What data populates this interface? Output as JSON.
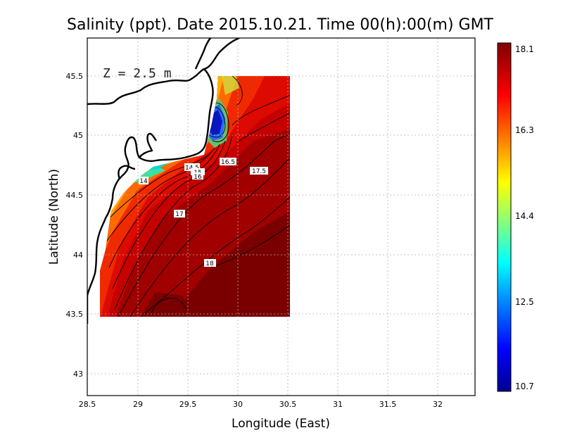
{
  "title": "Salinity (ppt). Date 2015.10.21. Time 00(h):00(m) GMT",
  "depth_label": "Z = 2.5 m",
  "xlabel": "Longitude (East)",
  "ylabel": "Latitude (North)",
  "x_ticks": [
    "28.5",
    "29",
    "29.5",
    "30",
    "30.5",
    "31",
    "31.5",
    "32"
  ],
  "y_ticks": [
    "43",
    "43.5",
    "44",
    "44.5",
    "45",
    "45.5"
  ],
  "colorbar": {
    "min": 10.7,
    "max": 18.1,
    "tick_labels": [
      "18.1",
      "16.3",
      "14.4",
      "12.5",
      "10.7"
    ],
    "colors": [
      "#00008f",
      "#0000ff",
      "#0080ff",
      "#00ffff",
      "#80ff80",
      "#ffff00",
      "#ff8000",
      "#ff0000",
      "#800000"
    ]
  },
  "contour_labels": [
    "14",
    "14.5",
    "15",
    "16",
    "16.5",
    "17",
    "17.5",
    "17",
    "18"
  ],
  "chart_data": {
    "type": "heatmap",
    "variable": "Salinity (ppt)",
    "xlim": [
      28.5,
      32.4
    ],
    "ylim": [
      42.8,
      45.8
    ],
    "data_extent": {
      "lon": [
        28.62,
        30.55
      ],
      "lat": [
        43.48,
        45.5
      ]
    },
    "contour_levels": [
      14,
      14.5,
      15,
      15.5,
      16,
      16.5,
      17,
      17.5,
      18
    ],
    "contour_labels_at": [
      {
        "value": 14,
        "lon": 29.05,
        "lat": 44.61
      },
      {
        "value": 14.5,
        "lon": 29.55,
        "lat": 44.73
      },
      {
        "value": 15,
        "lon": 29.62,
        "lat": 44.7
      },
      {
        "value": 16,
        "lon": 29.63,
        "lat": 44.66
      },
      {
        "value": 16.5,
        "lon": 29.91,
        "lat": 44.77
      },
      {
        "value": 17,
        "lon": 29.43,
        "lat": 44.33
      },
      {
        "value": 17.5,
        "lon": 30.19,
        "lat": 44.7
      },
      {
        "value": 18,
        "lon": 29.72,
        "lat": 43.93
      }
    ]
  }
}
